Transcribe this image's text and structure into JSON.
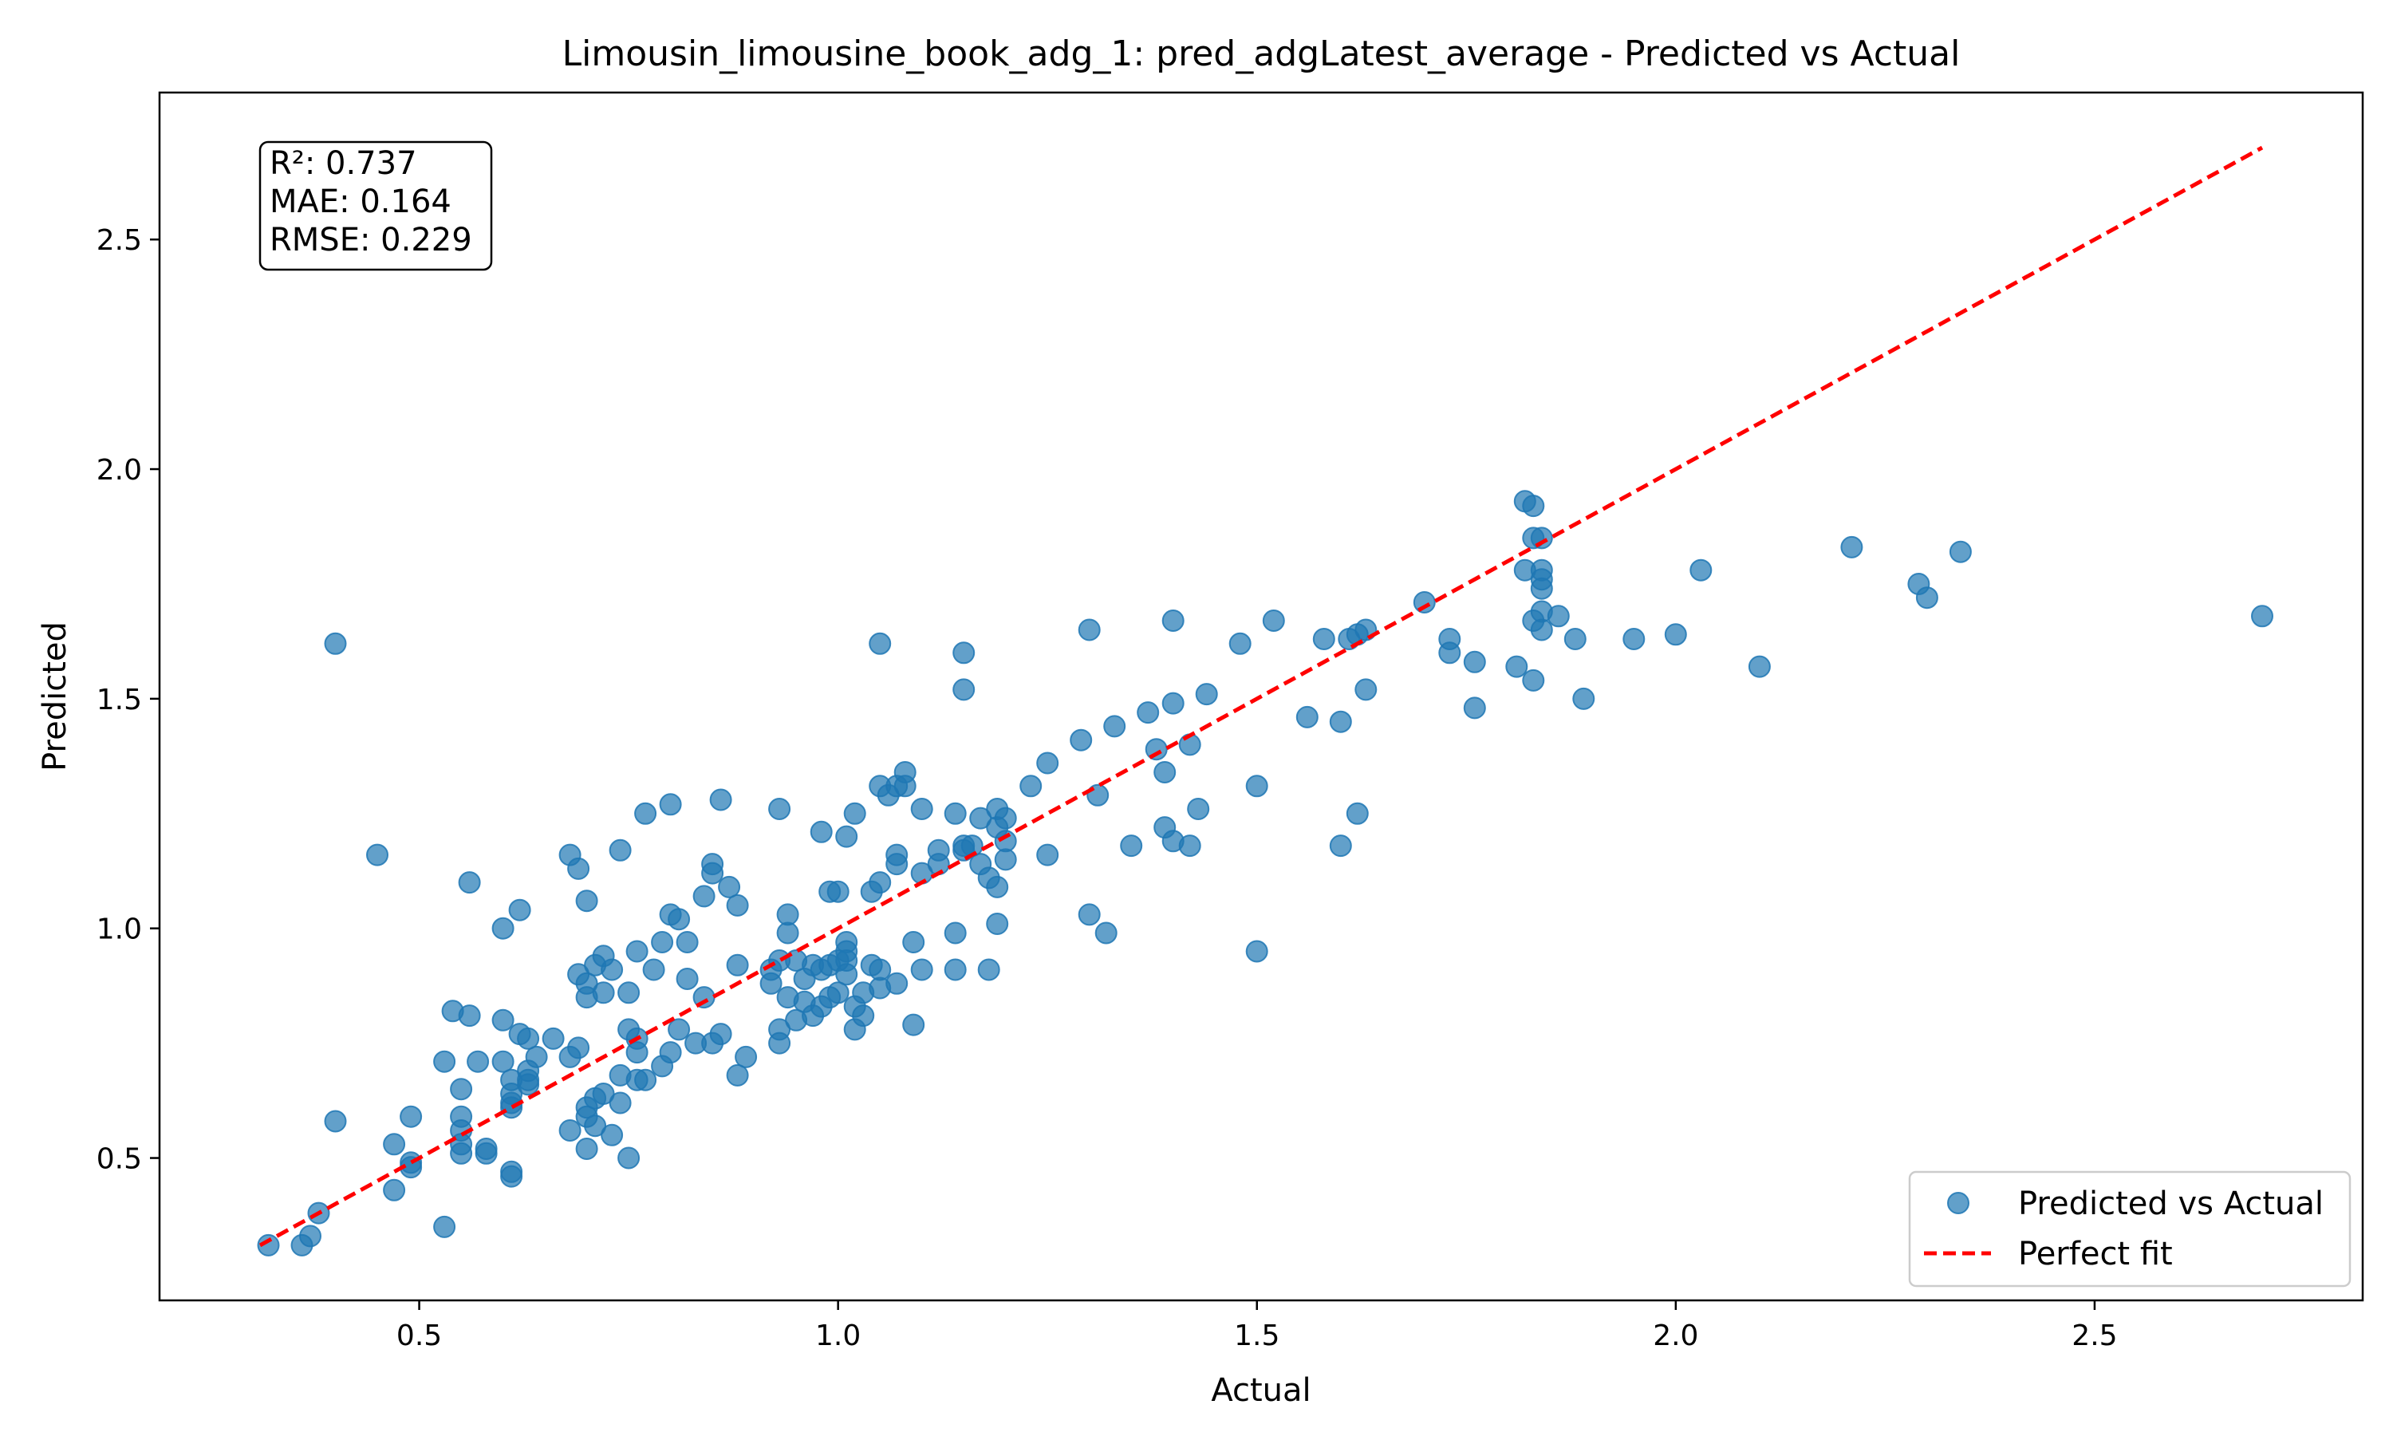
{
  "chart_data": {
    "type": "scatter",
    "title": "Limousin_limousine_book_adg_1: pred_adgLatest_average - Predicted vs Actual",
    "xlabel": "Actual",
    "ylabel": "Predicted",
    "xlim": [
      0.19,
      2.82
    ],
    "ylim": [
      0.19,
      2.82
    ],
    "xticks": [
      0.5,
      1.0,
      1.5,
      2.0,
      2.5
    ],
    "yticks": [
      0.5,
      1.0,
      1.5,
      2.0,
      2.5
    ],
    "xtick_labels": [
      "0.5",
      "1.0",
      "1.5",
      "2.0",
      "2.5"
    ],
    "ytick_labels": [
      "0.5",
      "1.0",
      "1.5",
      "2.0",
      "2.5"
    ],
    "grid": false,
    "legend_position": "bottom-right",
    "stats": [
      "R²: 0.737",
      "MAE: 0.164",
      "RMSE: 0.229"
    ],
    "colors": {
      "points": "#1f77b4",
      "fit_line": "#ff0000"
    },
    "series": [
      {
        "name": "Predicted vs Actual",
        "kind": "scatter",
        "points": [
          [
            0.32,
            0.31
          ],
          [
            0.36,
            0.31
          ],
          [
            0.37,
            0.33
          ],
          [
            0.38,
            0.38
          ],
          [
            0.4,
            1.62
          ],
          [
            0.4,
            0.58
          ],
          [
            0.45,
            1.16
          ],
          [
            0.47,
            0.53
          ],
          [
            0.47,
            0.43
          ],
          [
            0.49,
            0.59
          ],
          [
            0.49,
            0.48
          ],
          [
            0.49,
            0.49
          ],
          [
            0.53,
            0.71
          ],
          [
            0.53,
            0.35
          ],
          [
            0.54,
            0.82
          ],
          [
            0.55,
            0.59
          ],
          [
            0.55,
            0.56
          ],
          [
            0.55,
            0.53
          ],
          [
            0.55,
            0.51
          ],
          [
            0.55,
            0.65
          ],
          [
            0.56,
            0.81
          ],
          [
            0.56,
            1.1
          ],
          [
            0.57,
            0.71
          ],
          [
            0.58,
            0.51
          ],
          [
            0.58,
            0.52
          ],
          [
            0.6,
            0.71
          ],
          [
            0.6,
            0.8
          ],
          [
            0.6,
            1.0
          ],
          [
            0.61,
            0.67
          ],
          [
            0.61,
            0.64
          ],
          [
            0.61,
            0.62
          ],
          [
            0.61,
            0.47
          ],
          [
            0.61,
            0.46
          ],
          [
            0.61,
            0.61
          ],
          [
            0.62,
            1.04
          ],
          [
            0.62,
            0.77
          ],
          [
            0.63,
            0.76
          ],
          [
            0.63,
            0.67
          ],
          [
            0.63,
            0.69
          ],
          [
            0.63,
            0.66
          ],
          [
            0.64,
            0.72
          ],
          [
            0.66,
            0.76
          ],
          [
            0.68,
            0.56
          ],
          [
            0.68,
            1.16
          ],
          [
            0.68,
            0.72
          ],
          [
            0.69,
            0.9
          ],
          [
            0.69,
            0.74
          ],
          [
            0.69,
            1.13
          ],
          [
            0.7,
            0.88
          ],
          [
            0.7,
            1.06
          ],
          [
            0.7,
            0.85
          ],
          [
            0.7,
            0.61
          ],
          [
            0.7,
            0.59
          ],
          [
            0.7,
            0.52
          ],
          [
            0.71,
            0.92
          ],
          [
            0.71,
            0.63
          ],
          [
            0.71,
            0.57
          ],
          [
            0.72,
            0.94
          ],
          [
            0.72,
            0.86
          ],
          [
            0.72,
            0.64
          ],
          [
            0.73,
            0.55
          ],
          [
            0.73,
            0.91
          ],
          [
            0.74,
            0.68
          ],
          [
            0.74,
            0.62
          ],
          [
            0.74,
            1.17
          ],
          [
            0.75,
            0.78
          ],
          [
            0.75,
            0.5
          ],
          [
            0.75,
            0.86
          ],
          [
            0.76,
            0.95
          ],
          [
            0.76,
            0.76
          ],
          [
            0.76,
            0.73
          ],
          [
            0.76,
            0.67
          ],
          [
            0.77,
            0.67
          ],
          [
            0.77,
            1.25
          ],
          [
            0.78,
            0.91
          ],
          [
            0.79,
            0.7
          ],
          [
            0.79,
            0.97
          ],
          [
            0.8,
            1.03
          ],
          [
            0.8,
            0.73
          ],
          [
            0.8,
            1.27
          ],
          [
            0.81,
            1.02
          ],
          [
            0.81,
            0.78
          ],
          [
            0.82,
            0.97
          ],
          [
            0.82,
            0.89
          ],
          [
            0.83,
            0.75
          ],
          [
            0.84,
            1.07
          ],
          [
            0.84,
            0.85
          ],
          [
            0.85,
            1.14
          ],
          [
            0.85,
            1.12
          ],
          [
            0.85,
            0.75
          ],
          [
            0.86,
            0.77
          ],
          [
            0.86,
            1.28
          ],
          [
            0.87,
            1.09
          ],
          [
            0.88,
            1.05
          ],
          [
            0.88,
            0.92
          ],
          [
            0.88,
            0.68
          ],
          [
            0.89,
            0.72
          ],
          [
            0.92,
            0.91
          ],
          [
            0.92,
            0.88
          ],
          [
            0.93,
            1.26
          ],
          [
            0.93,
            0.78
          ],
          [
            0.93,
            0.75
          ],
          [
            0.93,
            0.93
          ],
          [
            0.94,
            0.85
          ],
          [
            0.94,
            0.99
          ],
          [
            0.94,
            1.03
          ],
          [
            0.95,
            0.8
          ],
          [
            0.95,
            0.93
          ],
          [
            0.96,
            0.89
          ],
          [
            0.96,
            0.84
          ],
          [
            0.97,
            0.81
          ],
          [
            0.97,
            0.92
          ],
          [
            0.98,
            0.83
          ],
          [
            0.98,
            1.21
          ],
          [
            0.98,
            0.91
          ],
          [
            0.99,
            1.08
          ],
          [
            0.99,
            0.92
          ],
          [
            0.99,
            0.85
          ],
          [
            1.0,
            1.08
          ],
          [
            1.0,
            0.93
          ],
          [
            1.0,
            0.86
          ],
          [
            1.01,
            1.2
          ],
          [
            1.01,
            0.97
          ],
          [
            1.01,
            0.95
          ],
          [
            1.01,
            0.93
          ],
          [
            1.01,
            0.9
          ],
          [
            1.02,
            0.78
          ],
          [
            1.02,
            0.83
          ],
          [
            1.02,
            1.25
          ],
          [
            1.03,
            0.86
          ],
          [
            1.03,
            0.81
          ],
          [
            1.04,
            0.92
          ],
          [
            1.04,
            1.08
          ],
          [
            1.05,
            0.87
          ],
          [
            1.05,
            1.1
          ],
          [
            1.05,
            1.31
          ],
          [
            1.05,
            1.62
          ],
          [
            1.05,
            0.91
          ],
          [
            1.06,
            1.29
          ],
          [
            1.07,
            1.31
          ],
          [
            1.07,
            1.16
          ],
          [
            1.07,
            1.14
          ],
          [
            1.07,
            0.88
          ],
          [
            1.08,
            1.34
          ],
          [
            1.08,
            1.31
          ],
          [
            1.09,
            0.97
          ],
          [
            1.09,
            0.79
          ],
          [
            1.1,
            1.12
          ],
          [
            1.1,
            1.26
          ],
          [
            1.1,
            0.91
          ],
          [
            1.12,
            1.14
          ],
          [
            1.12,
            1.17
          ],
          [
            1.14,
            1.25
          ],
          [
            1.14,
            0.99
          ],
          [
            1.14,
            0.91
          ],
          [
            1.15,
            1.18
          ],
          [
            1.15,
            1.6
          ],
          [
            1.15,
            1.52
          ],
          [
            1.15,
            1.17
          ],
          [
            1.16,
            1.18
          ],
          [
            1.17,
            1.14
          ],
          [
            1.17,
            1.24
          ],
          [
            1.18,
            1.11
          ],
          [
            1.18,
            0.91
          ],
          [
            1.19,
            1.09
          ],
          [
            1.19,
            1.01
          ],
          [
            1.19,
            1.26
          ],
          [
            1.19,
            1.22
          ],
          [
            1.2,
            1.24
          ],
          [
            1.2,
            1.19
          ],
          [
            1.2,
            1.15
          ],
          [
            1.23,
            1.31
          ],
          [
            1.25,
            1.36
          ],
          [
            1.25,
            1.16
          ],
          [
            1.29,
            1.41
          ],
          [
            1.3,
            1.65
          ],
          [
            1.3,
            1.03
          ],
          [
            1.31,
            1.29
          ],
          [
            1.32,
            0.99
          ],
          [
            1.33,
            1.44
          ],
          [
            1.35,
            1.18
          ],
          [
            1.37,
            1.47
          ],
          [
            1.38,
            1.39
          ],
          [
            1.39,
            1.22
          ],
          [
            1.39,
            1.34
          ],
          [
            1.4,
            1.67
          ],
          [
            1.4,
            1.49
          ],
          [
            1.4,
            1.19
          ],
          [
            1.42,
            1.18
          ],
          [
            1.42,
            1.4
          ],
          [
            1.43,
            1.26
          ],
          [
            1.44,
            1.51
          ],
          [
            1.48,
            1.62
          ],
          [
            1.5,
            1.31
          ],
          [
            1.5,
            0.95
          ],
          [
            1.52,
            1.67
          ],
          [
            1.56,
            1.46
          ],
          [
            1.58,
            1.63
          ],
          [
            1.6,
            1.18
          ],
          [
            1.6,
            1.45
          ],
          [
            1.61,
            1.63
          ],
          [
            1.62,
            1.25
          ],
          [
            1.62,
            1.64
          ],
          [
            1.63,
            1.65
          ],
          [
            1.63,
            1.52
          ],
          [
            1.7,
            1.71
          ],
          [
            1.73,
            1.6
          ],
          [
            1.73,
            1.63
          ],
          [
            1.76,
            1.58
          ],
          [
            1.76,
            1.48
          ],
          [
            1.81,
            1.57
          ],
          [
            1.82,
            1.93
          ],
          [
            1.82,
            1.78
          ],
          [
            1.83,
            1.92
          ],
          [
            1.83,
            1.85
          ],
          [
            1.83,
            1.67
          ],
          [
            1.83,
            1.54
          ],
          [
            1.84,
            1.85
          ],
          [
            1.84,
            1.78
          ],
          [
            1.84,
            1.76
          ],
          [
            1.84,
            1.74
          ],
          [
            1.84,
            1.69
          ],
          [
            1.84,
            1.65
          ],
          [
            1.86,
            1.68
          ],
          [
            1.88,
            1.63
          ],
          [
            1.89,
            1.5
          ],
          [
            1.95,
            1.63
          ],
          [
            2.0,
            1.64
          ],
          [
            2.03,
            1.78
          ],
          [
            2.1,
            1.57
          ],
          [
            2.21,
            1.83
          ],
          [
            2.29,
            1.75
          ],
          [
            2.3,
            1.72
          ],
          [
            2.34,
            1.82
          ],
          [
            2.7,
            1.68
          ]
        ]
      },
      {
        "name": "Perfect fit",
        "kind": "line",
        "points": [
          [
            0.31,
            0.31
          ],
          [
            2.7,
            2.7
          ]
        ]
      }
    ]
  }
}
